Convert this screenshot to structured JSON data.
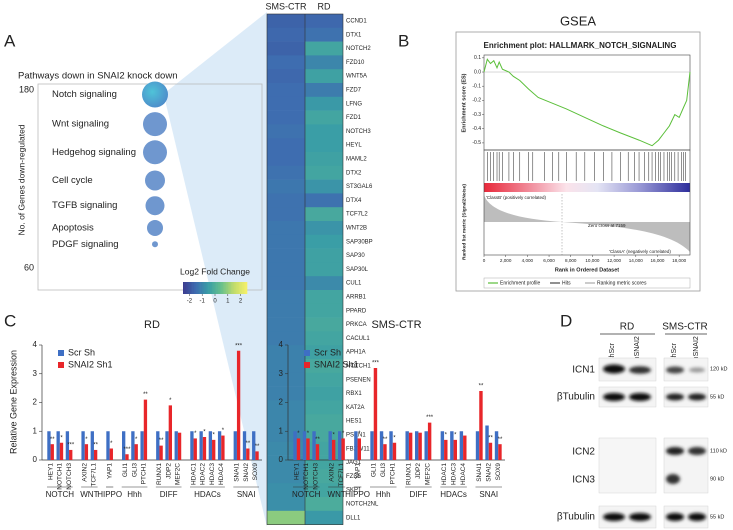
{
  "panel_labels": [
    "A",
    "B",
    "C",
    "D"
  ],
  "chart_data": [
    {
      "type": "bubble",
      "title": "Pathways down in SNAI2 knock down",
      "ylabel": "No. of Genes down-regulated",
      "categories": [
        "Notch signaling",
        "Wnt signaling",
        "Hedgehog signaling",
        "Cell cycle",
        "TGFB signaling",
        "Apoptosis",
        "PDGF signaling"
      ],
      "values": [
        177,
        157,
        138,
        119,
        102,
        87,
        76
      ],
      "sizes": [
        13,
        12,
        12,
        10,
        9.5,
        8,
        3
      ],
      "color": "#6f97cf",
      "ylim": [
        60,
        180
      ],
      "yticks": [
        180,
        60
      ]
    },
    {
      "type": "heatmap",
      "columns": [
        "SMS-CTR",
        "RD"
      ],
      "rows": [
        "CCND1",
        "DTX1",
        "NOTCH2",
        "FZD10",
        "WNT5A",
        "FZD7",
        "LFNG",
        "FZD1",
        "NOTCH3",
        "HEYL",
        "MAML2",
        "DTX2",
        "ST3GAL6",
        "DTX4",
        "TCF7L2",
        "WNT2B",
        "SAP30BP",
        "SAP30",
        "SAP30L",
        "CUL1",
        "ARRB1",
        "PPARD",
        "PRKCA",
        "CACUL1",
        "APH1A",
        "NOTCH1",
        "PSENEN",
        "RBX1",
        "KAT2A",
        "HES1",
        "PSEN1",
        "FBXW11",
        "JAG1",
        "FZD5",
        "SKP1",
        "NOTCH2NL",
        "DLL1"
      ],
      "values": [
        [
          -1.7,
          -1.6
        ],
        [
          -1.6,
          -1.4
        ],
        [
          -1.7,
          -0.3
        ],
        [
          -1.5,
          -1.0
        ],
        [
          -1.6,
          -0.4
        ],
        [
          -1.5,
          -1.2
        ],
        [
          -1.5,
          -0.6
        ],
        [
          -1.5,
          -0.3
        ],
        [
          -1.4,
          -0.5
        ],
        [
          -1.5,
          -0.5
        ],
        [
          -1.5,
          -0.4
        ],
        [
          -1.4,
          -0.3
        ],
        [
          -1.3,
          -0.7
        ],
        [
          -1.4,
          -1.4
        ],
        [
          -1.4,
          -0.2
        ],
        [
          -1.3,
          -0.7
        ],
        [
          -1.3,
          -0.5
        ],
        [
          -1.3,
          -0.4
        ],
        [
          -1.3,
          -0.4
        ],
        [
          -1.3,
          -0.9
        ],
        [
          -1.2,
          -0.3
        ],
        [
          -1.2,
          -0.3
        ],
        [
          -1.2,
          -0.2
        ],
        [
          -1.2,
          -0.3
        ],
        [
          -1.1,
          -0.4
        ],
        [
          -1.1,
          -0.2
        ],
        [
          -1.1,
          -0.3
        ],
        [
          -1.1,
          -0.4
        ],
        [
          -1.0,
          -0.3
        ],
        [
          -1.0,
          -0.2
        ],
        [
          -1.0,
          -0.2
        ],
        [
          -0.9,
          -0.3
        ],
        [
          -0.9,
          -0.3
        ],
        [
          -0.9,
          -0.2
        ],
        [
          -0.8,
          -0.3
        ],
        [
          -0.8,
          -0.1
        ],
        [
          0.9,
          -0.6
        ]
      ],
      "colorbar_label": "Log2 Fold Change",
      "vlim": [
        -2.5,
        2.5
      ],
      "ticks": [
        -2,
        -1,
        0,
        1,
        2
      ],
      "colorscale": [
        "#3b3a8e",
        "#3e6db0",
        "#3a9ea6",
        "#67c08c",
        "#c2dc6b",
        "#f6f06a"
      ]
    },
    {
      "type": "gsea",
      "title": "GSEA",
      "subtitle": "Enrichment plot: HALLMARK_NOTCH_SIGNALING",
      "ylabel": "Enrichment score (ES)",
      "xlabel": "Rank in Ordered Dataset",
      "metric_label": "Ranked list metric (Signal2Noise)",
      "annotations": [
        "Zero cross at 7159",
        "'ClassB' (positively correlated)",
        "'ClassA' (negatively correlated)"
      ],
      "x": [
        0,
        300,
        600,
        900,
        1200,
        1400,
        1700,
        2300,
        2700,
        3300,
        4100,
        5000,
        6300,
        7600,
        9300,
        11000,
        12600,
        14300,
        15500,
        16100,
        16600,
        17100,
        17600,
        18000,
        18400,
        18700,
        19000
      ],
      "values": [
        0,
        0.09,
        0.06,
        0.08,
        0.03,
        0.07,
        0.02,
        0.0,
        -0.03,
        -0.06,
        -0.12,
        -0.18,
        -0.22,
        -0.26,
        -0.32,
        -0.38,
        -0.43,
        -0.48,
        -0.52,
        -0.48,
        -0.43,
        -0.38,
        -0.3,
        -0.32,
        -0.25,
        -0.2,
        0
      ],
      "color": "#5bbf3a",
      "hits": [
        300,
        600,
        900,
        1200,
        1400,
        1700,
        2300,
        2700,
        3300,
        4100,
        4500,
        5600,
        6300,
        6900,
        7600,
        8500,
        9300,
        10200,
        11000,
        11800,
        12600,
        13300,
        13900,
        14300,
        14800,
        15200,
        15500,
        15800,
        16100,
        16300,
        16600,
        16900,
        17100,
        17300,
        17600,
        17900,
        18200,
        18400,
        18600
      ],
      "xlim": [
        0,
        19000
      ],
      "xticks": [
        0,
        {
          "value": 2000,
          "label": "2,000"
        },
        {
          "value": 4000,
          "label": "4,000"
        },
        {
          "value": 6000,
          "label": "6,000"
        },
        {
          "value": 8000,
          "label": "8,000"
        },
        {
          "value": 10000,
          "label": "10,000"
        },
        {
          "value": 12000,
          "label": "12,000"
        },
        {
          "value": 14000,
          "label": "14,000"
        },
        {
          "value": 16000,
          "label": "16,000"
        },
        {
          "value": 18000,
          "label": "18,000"
        }
      ],
      "ylim": [
        -0.55,
        0.12
      ],
      "yticks": [
        0.1,
        {
          "value": 0,
          "label": "0.0"
        },
        -0.1,
        -0.2,
        -0.3,
        -0.4,
        -0.5
      ],
      "legend": [
        "Enrichment profile",
        "Hits",
        "Ranking metric scores"
      ]
    },
    {
      "type": "bar",
      "title": "RD",
      "ylabel": "Relative Gene Expression",
      "groups": [
        {
          "name": "NOTCH",
          "categories": [
            "HEY1",
            "NOTCH1",
            "NOTCH3"
          ],
          "stars": [
            "**",
            "*",
            "***"
          ]
        },
        {
          "name": "WNT",
          "categories": [
            "AXIN2",
            "TCF7L1"
          ],
          "stars": [
            "*",
            "**"
          ]
        },
        {
          "name": "HIPPO",
          "categories": [
            "YAP1"
          ],
          "stars": [
            "*"
          ]
        },
        {
          "name": "Hhh",
          "categories": [
            "GLI1",
            "GLI3",
            "PTCH1"
          ],
          "stars": [
            "***",
            "*",
            "**"
          ]
        },
        {
          "name": "DIFF",
          "categories": [
            "RUNX1",
            "JDP2",
            "MEF2C"
          ],
          "stars": [
            "**",
            "*",
            null
          ]
        },
        {
          "name": "HDACs",
          "categories": [
            "HDAC1",
            "HDAC2",
            "HDAC3",
            "HDAC4"
          ],
          "stars": [
            "*",
            "*",
            "*",
            "*"
          ]
        },
        {
          "name": "SNAI",
          "categories": [
            "SNAI1",
            "SNAI2",
            "SOX9"
          ],
          "stars": [
            "***",
            "**",
            "**"
          ]
        }
      ],
      "series": [
        {
          "name": "Scr Sh",
          "color": "#3e6fc4",
          "values": [
            1,
            1,
            1,
            1,
            1,
            1,
            1,
            1,
            1,
            1,
            1,
            1,
            1,
            1,
            1,
            1,
            1,
            1,
            1
          ]
        },
        {
          "name": "SNAI2 Sh1",
          "color": "#e8262a",
          "values": [
            0.55,
            0.6,
            0.35,
            0.55,
            0.35,
            0.4,
            0.2,
            0.55,
            2.1,
            0.5,
            1.9,
            0.95,
            0.75,
            0.8,
            0.7,
            0.85,
            3.8,
            0.4,
            0.3
          ]
        }
      ],
      "ylim": [
        0,
        4
      ],
      "yticks": [
        0,
        1,
        2,
        3,
        4
      ]
    },
    {
      "type": "bar",
      "title": "SMS-CTR",
      "groups": [
        {
          "name": "NOTCH",
          "categories": [
            "HEY1",
            "NOTCH1",
            "NOTCH3"
          ],
          "stars": [
            "*",
            "*",
            "**"
          ]
        },
        {
          "name": "WNT",
          "categories": [
            "AXIN2",
            "TCF7L1"
          ],
          "stars": [
            "*",
            "*"
          ]
        },
        {
          "name": "HIPPO",
          "categories": [
            "YAP1"
          ],
          "stars": [
            "*"
          ]
        },
        {
          "name": "Hhh",
          "categories": [
            "GLI1",
            "GLI3",
            "PTCH1"
          ],
          "stars": [
            "***",
            "**",
            "*"
          ]
        },
        {
          "name": "DIFF",
          "categories": [
            "RUNX1",
            "JDP2",
            "MEF2C"
          ],
          "stars": [
            null,
            null,
            "***"
          ]
        },
        {
          "name": "HDACs",
          "categories": [
            "HDAC1",
            "HDAC3",
            "HDAC4"
          ],
          "stars": [
            "*",
            "*",
            null
          ]
        },
        {
          "name": "SNAI",
          "categories": [
            "SNAI1",
            "SNAI2",
            "SOX9"
          ],
          "stars": [
            "**",
            "**",
            "**"
          ]
        }
      ],
      "series": [
        {
          "name": "Scr Sh",
          "color": "#3e6fc4",
          "values": [
            1,
            1,
            1,
            1,
            1,
            1,
            1,
            1,
            1,
            1,
            1,
            1,
            1,
            1,
            1,
            1,
            1.2,
            1
          ]
        },
        {
          "name": "SNAI2 Sh1",
          "color": "#e8262a",
          "values": [
            0.75,
            0.75,
            0.55,
            0.7,
            0.75,
            0.75,
            3.2,
            0.55,
            0.6,
            0.95,
            0.95,
            1.3,
            0.7,
            0.7,
            0.85,
            2.4,
            0.6,
            0.55
          ]
        }
      ],
      "ylim": [
        0,
        4
      ],
      "yticks": [
        0,
        1,
        2,
        3,
        4
      ]
    }
  ],
  "western_blot": {
    "cell_lines": [
      "RD",
      "SMS-CTR"
    ],
    "lanes": [
      "shScr",
      "shSNAI2",
      "shScr",
      "shSNAI2"
    ],
    "rows": [
      {
        "label": "ICN1",
        "size": "120 kD"
      },
      {
        "label": "βTubulin",
        "size": "55 kD"
      },
      {
        "label": "ICN2",
        "size": "110 kD"
      },
      {
        "label": "ICN3",
        "size": "90 kD"
      },
      {
        "label": "βTubulin",
        "size": "55 kD"
      }
    ]
  }
}
